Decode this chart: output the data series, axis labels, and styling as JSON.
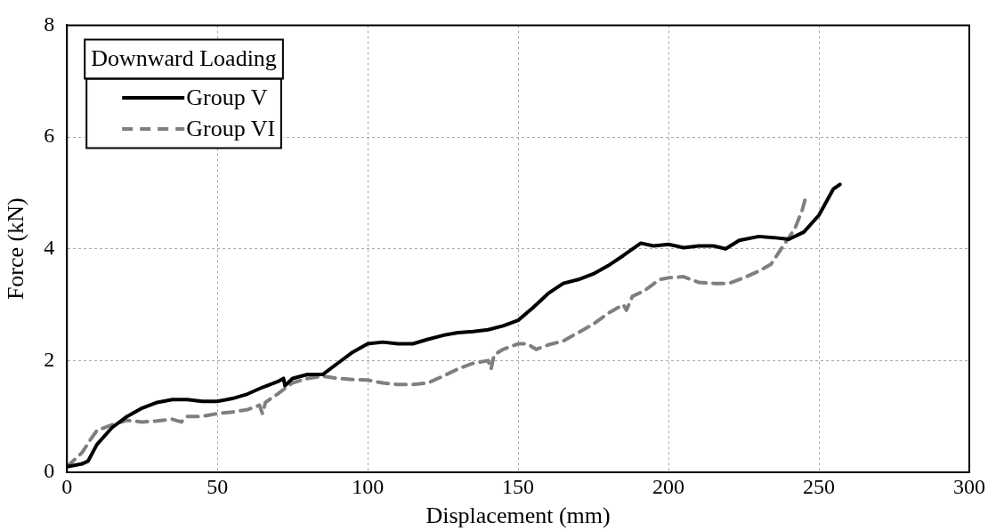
{
  "chart_data": {
    "type": "line",
    "xlabel": "Displacement (mm)",
    "ylabel": "Force (kN)",
    "legend_title": "Downward Loading",
    "legend": "top left",
    "grid": true,
    "marker": "none",
    "xlim": [
      0,
      300
    ],
    "xticks": [
      0,
      50,
      100,
      150,
      200,
      250,
      300
    ],
    "ylim": [
      0,
      8
    ],
    "yticks": [
      0,
      2,
      4,
      6,
      8
    ],
    "series": [
      {
        "name": "Group V",
        "color": "#000000",
        "line_style": "solid",
        "x": [
          0,
          5,
          7,
          10,
          15,
          20,
          25,
          30,
          35,
          40,
          45,
          50,
          55,
          60,
          65,
          70,
          72,
          72.5,
          75,
          80,
          85,
          90,
          95,
          100,
          105,
          110,
          115,
          120,
          125,
          130,
          135,
          140,
          145,
          150,
          155,
          160,
          165,
          170,
          175,
          180,
          185,
          190.8,
          195,
          200,
          205,
          210,
          215,
          219,
          223.5,
          230,
          235,
          240,
          245,
          250,
          254.8,
          257
        ],
        "values": [
          0.1,
          0.15,
          0.2,
          0.5,
          0.8,
          1.0,
          1.15,
          1.25,
          1.3,
          1.3,
          1.27,
          1.27,
          1.32,
          1.4,
          1.52,
          1.62,
          1.68,
          1.55,
          1.68,
          1.75,
          1.75,
          1.95,
          2.15,
          2.3,
          2.33,
          2.3,
          2.3,
          2.38,
          2.45,
          2.5,
          2.52,
          2.55,
          2.62,
          2.72,
          2.95,
          3.2,
          3.38,
          3.45,
          3.55,
          3.7,
          3.88,
          4.1,
          4.05,
          4.08,
          4.02,
          4.05,
          4.05,
          4.0,
          4.15,
          4.22,
          4.2,
          4.17,
          4.3,
          4.6,
          5.07,
          5.15
        ]
      },
      {
        "name": "Group VI",
        "color": "#7f7f7f",
        "line_style": "dashed",
        "x": [
          0,
          2,
          5,
          8,
          10,
          15,
          20,
          25,
          30,
          35,
          38,
          40,
          45,
          50,
          55,
          60,
          64,
          65,
          66,
          70,
          75,
          80,
          85,
          90,
          95,
          100,
          105,
          110,
          115,
          120,
          125,
          130,
          135,
          140,
          141,
          142,
          145,
          150,
          153,
          156,
          160,
          165,
          170,
          175,
          180,
          185,
          186,
          188,
          192,
          197,
          200,
          205,
          210,
          215,
          220,
          225,
          230,
          234,
          238,
          242,
          244.5,
          245.5
        ],
        "values": [
          0.1,
          0.2,
          0.35,
          0.6,
          0.75,
          0.85,
          0.93,
          0.9,
          0.92,
          0.95,
          0.9,
          1.0,
          1.0,
          1.05,
          1.08,
          1.12,
          1.2,
          1.05,
          1.25,
          1.4,
          1.6,
          1.68,
          1.72,
          1.68,
          1.66,
          1.65,
          1.6,
          1.57,
          1.57,
          1.6,
          1.72,
          1.85,
          1.95,
          2.0,
          1.85,
          2.1,
          2.2,
          2.3,
          2.3,
          2.2,
          2.28,
          2.35,
          2.5,
          2.65,
          2.85,
          3.0,
          2.9,
          3.15,
          3.25,
          3.45,
          3.48,
          3.5,
          3.4,
          3.38,
          3.38,
          3.48,
          3.6,
          3.72,
          4.04,
          4.36,
          4.7,
          4.9
        ]
      }
    ]
  }
}
